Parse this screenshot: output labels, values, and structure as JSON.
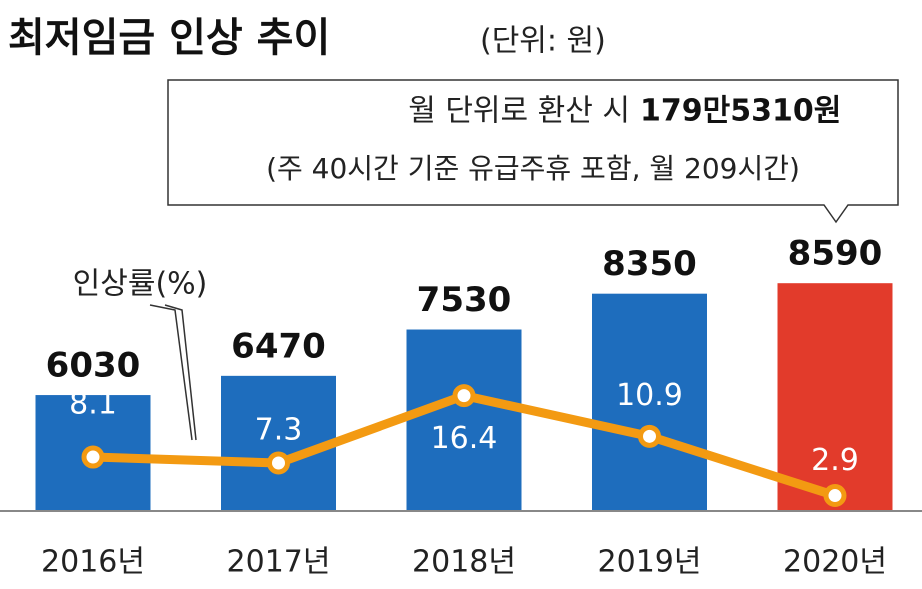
{
  "chart_data": {
    "type": "bar_line",
    "title": "최저임금 인상 추이",
    "unit": "(단위: 원)",
    "note_line1": "월 단위로 환산 시",
    "note_highlight": "179만5310원",
    "note_line2": "(주 40시간 기준 유급주휴 포함, 월 209시간)",
    "categories": [
      "2016년",
      "2017년",
      "2018년",
      "2019년",
      "2020년"
    ],
    "bars": {
      "values": [
        6030,
        6470,
        7530,
        8350,
        8590
      ],
      "colors": [
        "#1e6dbd",
        "#1e6dbd",
        "#1e6dbd",
        "#1e6dbd",
        "#e23b2b"
      ]
    },
    "line": {
      "name": "인상률(%)",
      "color": "#f39a12",
      "values": [
        8.1,
        7.3,
        16.4,
        10.9,
        2.9
      ]
    }
  }
}
